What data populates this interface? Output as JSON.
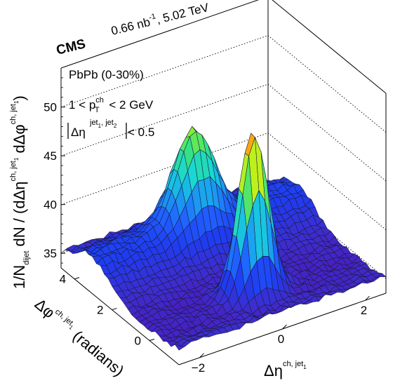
{
  "chart_data": {
    "type": "surface",
    "experiment": "CMS",
    "lumi_label": "0.66 nb",
    "lumi_sup": "-1",
    "energy_label": ", 5.02 TeV",
    "annotations": {
      "system": "PbPb (0-30%)",
      "pt_cut_prefix": "1 < p",
      "pt_cut_sub": "T",
      "pt_cut_sup": "ch",
      "pt_cut_suffix": " < 2 GeV",
      "eta_cut_symbol": "Δη",
      "eta_cut_sup": "jet",
      "eta_cut_sup_sub1": "1",
      "eta_cut_sup_mid": ", jet",
      "eta_cut_sup_sub2": "2",
      "eta_cut_suffix": " < 0.5"
    },
    "axes": {
      "z_label_main": "1/N",
      "z_label_sub": "dijet",
      "z_label_rest": " dN / (dΔη",
      "z_label_sup1": "ch, jet",
      "z_label_sup1_sub": "1",
      "z_label_mid": " dΔφ",
      "z_label_sup2": "ch, jet",
      "z_label_sup2_sub": "1",
      "z_label_close": ")",
      "x_label": "Δη",
      "x_label_sup": "ch, jet",
      "x_label_sup_sub": "1",
      "y_label": "Δφ",
      "y_label_sup": "ch, jet",
      "y_label_sup_sub": "1",
      "y_label_unit": "(radians)",
      "z_ticks": [
        "35",
        "40",
        "45",
        "50"
      ],
      "x_ticks": [
        "−2",
        "0",
        "2"
      ],
      "y_ticks": [
        "0",
        "2",
        "4"
      ],
      "x_range": [
        -2.5,
        2.5
      ],
      "y_range": [
        -1.5708,
        4.7124
      ],
      "z_range": [
        33.5,
        54
      ]
    },
    "surface_model": {
      "pedestal": 34.7,
      "near_side_peak": {
        "x": 0,
        "y": 0,
        "height": 51.6,
        "sigma_x": 0.33,
        "sigma_y": 0.33
      },
      "away_side_ridge": {
        "y": 3.1416,
        "sigma_y": 0.9,
        "height": 2.6
      },
      "away_side_peak": {
        "x": 0,
        "y": 3.1416,
        "height": 46.7,
        "sigma_x": 0.45,
        "sigma_y": 0.5
      }
    },
    "colormap": [
      "#5a00a8",
      "#3f2ccc",
      "#1f3cf0",
      "#2060ff",
      "#1aa0f0",
      "#18d6d8",
      "#30e08a",
      "#8ef02a",
      "#e8f010",
      "#ff9a10",
      "#f02020"
    ],
    "grid": true
  }
}
